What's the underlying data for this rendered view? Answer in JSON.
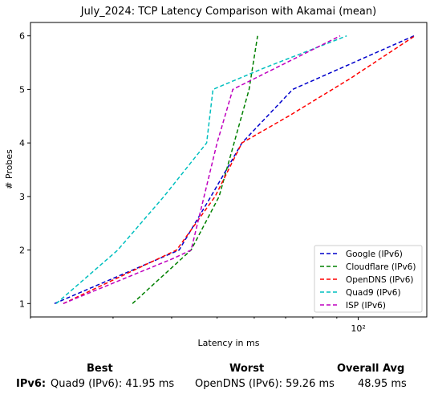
{
  "chart_data": {
    "type": "line",
    "title": "July_2024: TCP Latency Comparison with Akamai (mean)",
    "xlabel": "Latency in ms",
    "ylabel": "# Probes",
    "xscale": "log",
    "xlim": [
      20,
      140
    ],
    "ylim": [
      0.75,
      6.25
    ],
    "xticks": [
      {
        "value": 100,
        "label": "10²"
      }
    ],
    "yticks": [
      1,
      2,
      3,
      4,
      5,
      6
    ],
    "grid": false,
    "legend_position": "lower-right",
    "series": [
      {
        "name": "Google (IPv6)",
        "color": "#0000cc",
        "points": [
          [
            22.5,
            1
          ],
          [
            41.5,
            2
          ],
          [
            48.5,
            3
          ],
          [
            56.5,
            4
          ],
          [
            72.5,
            5
          ],
          [
            131.5,
            6
          ]
        ]
      },
      {
        "name": "Cloudflare (IPv6)",
        "color": "#008000",
        "points": [
          [
            33,
            1
          ],
          [
            44,
            2
          ],
          [
            50.5,
            3
          ],
          [
            58.5,
            5
          ],
          [
            61,
            6
          ]
        ]
      },
      {
        "name": "OpenDNS (IPv6)",
        "color": "#ff0000",
        "points": [
          [
            23.5,
            1
          ],
          [
            41,
            2
          ],
          [
            49.5,
            3
          ],
          [
            56.5,
            4
          ],
          [
            71,
            4.5
          ],
          [
            96,
            5.2
          ],
          [
            132,
            6
          ]
        ]
      },
      {
        "name": "Quad9 (IPv6)",
        "color": "#00bfbf",
        "points": [
          [
            22.7,
            1
          ],
          [
            30.7,
            2
          ],
          [
            38.5,
            3
          ],
          [
            47.5,
            4
          ],
          [
            49,
            5
          ],
          [
            63,
            5.4
          ],
          [
            94.5,
            6
          ]
        ]
      },
      {
        "name": "ISP (IPv6)",
        "color": "#bf00bf",
        "points": [
          [
            23.5,
            1
          ],
          [
            40.5,
            1.85
          ],
          [
            44,
            2
          ],
          [
            50,
            4
          ],
          [
            54,
            5
          ],
          [
            91.5,
            6
          ]
        ]
      }
    ]
  },
  "summary": {
    "best_header": "Best",
    "worst_header": "Worst",
    "avg_header": "Overall Avg",
    "row_label": "IPv6:",
    "best_value": "Quad9 (IPv6): 41.95 ms",
    "worst_value": "OpenDNS (IPv6): 59.26 ms",
    "avg_value": "48.95 ms"
  }
}
